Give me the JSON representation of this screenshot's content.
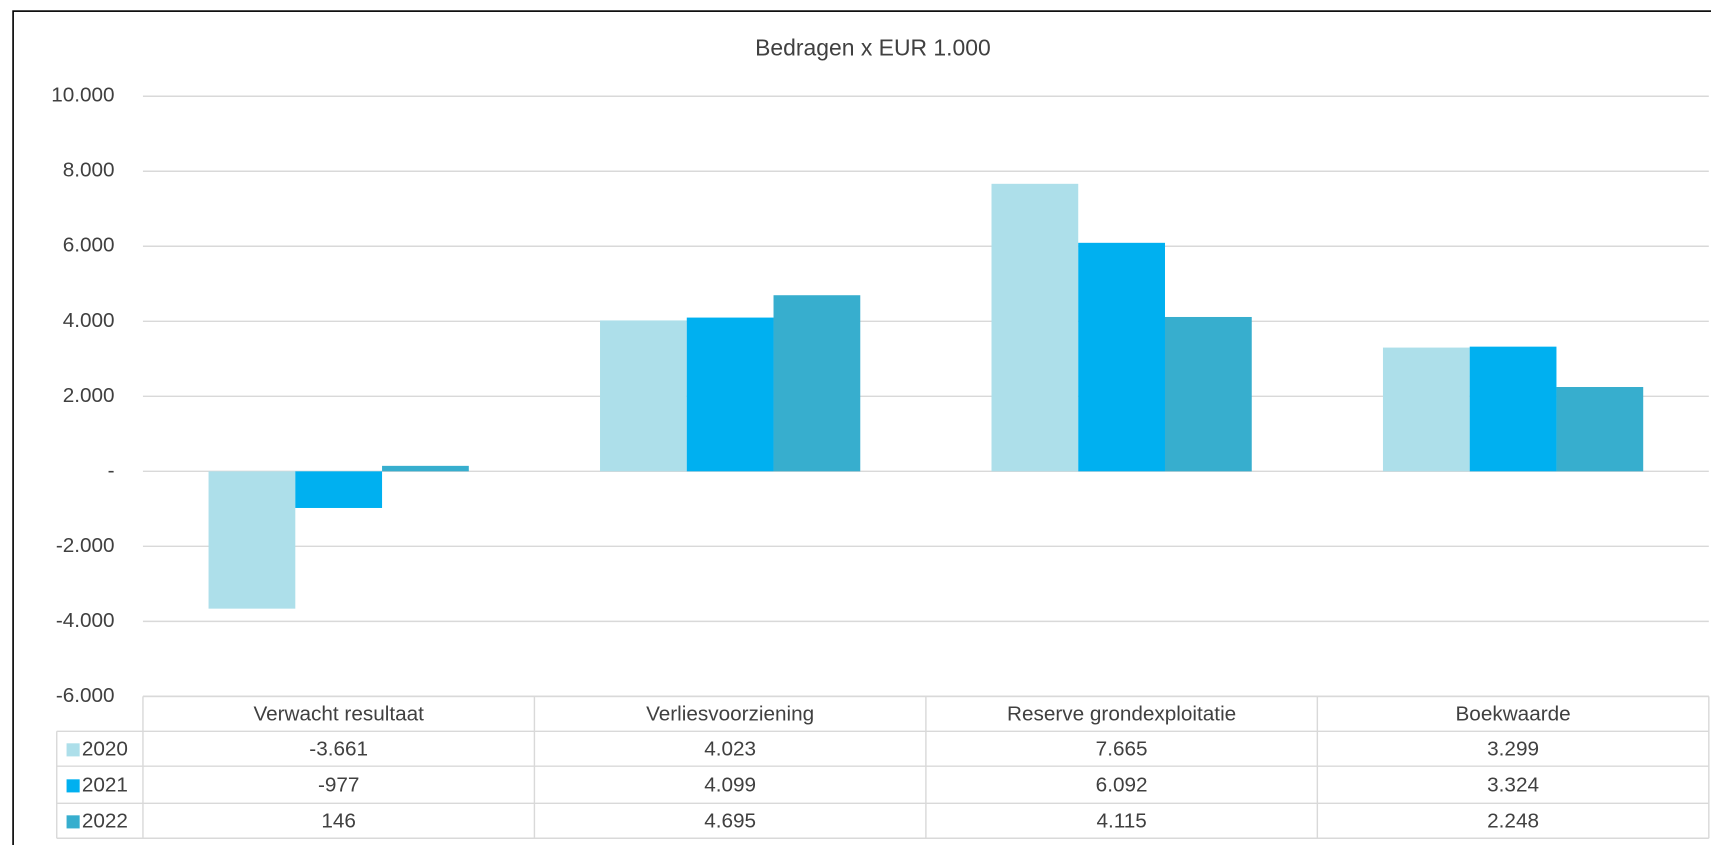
{
  "chart_data": {
    "type": "bar",
    "title": "Bedragen x EUR 1.000",
    "categories": [
      "Verwacht resultaat",
      "Verliesvoorziening",
      "Reserve grondexploitatie",
      "Boekwaarde"
    ],
    "series": [
      {
        "name": "2020",
        "color": "#addfea",
        "values": [
          -3661,
          4023,
          7665,
          3299
        ],
        "value_labels": [
          "-3.661",
          "4.023",
          "7.665",
          "3.299"
        ]
      },
      {
        "name": "2021",
        "color": "#00b0f0",
        "values": [
          -977,
          4099,
          6092,
          3324
        ],
        "value_labels": [
          "-977",
          "4.099",
          "6.092",
          "3.324"
        ]
      },
      {
        "name": "2022",
        "color": "#37aece",
        "values": [
          146,
          4695,
          4115,
          2248
        ],
        "value_labels": [
          "146",
          "4.695",
          "4.115",
          "2.248"
        ]
      }
    ],
    "ylim": [
      -6000,
      10000
    ],
    "yticks": [
      {
        "value": -6000,
        "label": "-6.000"
      },
      {
        "value": -4000,
        "label": "-4.000"
      },
      {
        "value": -2000,
        "label": "-2.000"
      },
      {
        "value": 0,
        "label": "-"
      },
      {
        "value": 2000,
        "label": "2.000"
      },
      {
        "value": 4000,
        "label": "4.000"
      },
      {
        "value": 6000,
        "label": "6.000"
      },
      {
        "value": 8000,
        "label": "8.000"
      },
      {
        "value": 10000,
        "label": "10.000"
      }
    ],
    "grid": true
  }
}
